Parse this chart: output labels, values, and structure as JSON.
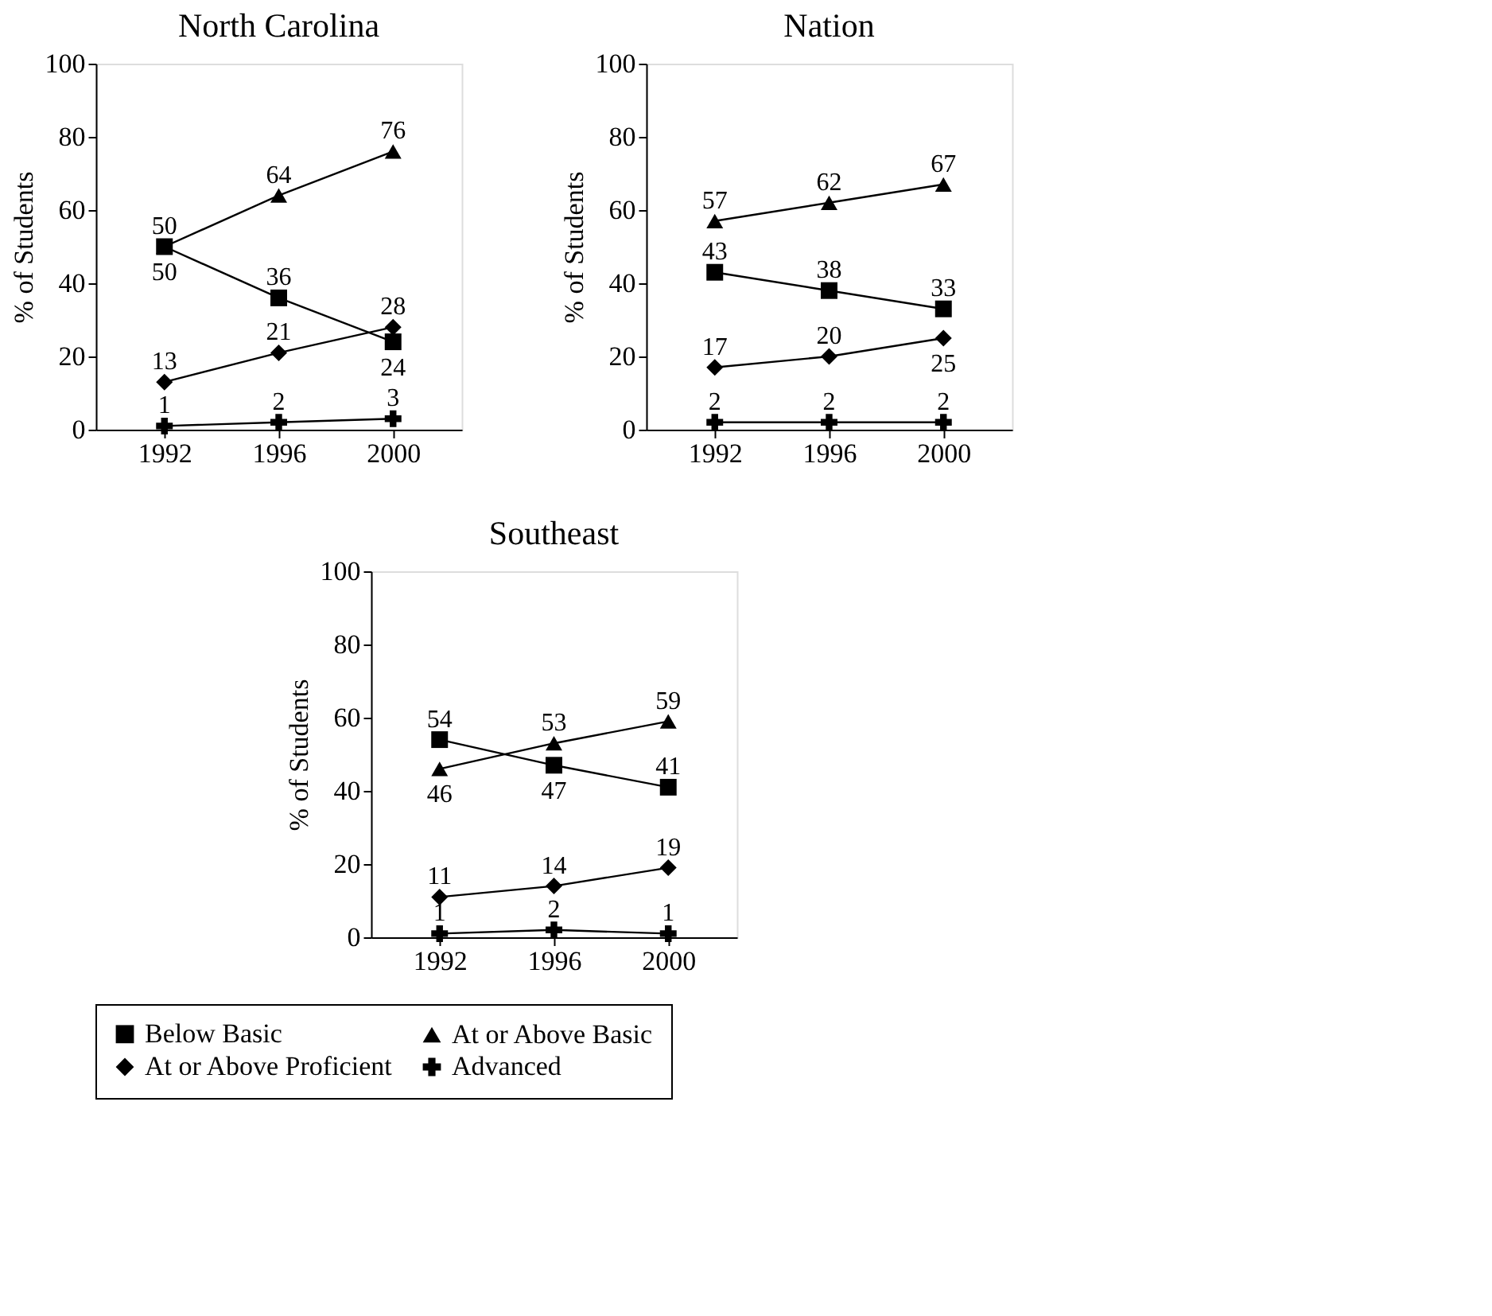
{
  "chart_data": [
    {
      "type": "line",
      "title": "North Carolina",
      "ylabel": "% of Students",
      "categories": [
        "1992",
        "1996",
        "2000"
      ],
      "ylim": [
        0,
        100
      ],
      "yticks": [
        0,
        20,
        40,
        60,
        80,
        100
      ],
      "grid": false,
      "legend": "bottom",
      "data_labels": true,
      "series": [
        {
          "name": "Below Basic",
          "color": "#000000",
          "marker": "square",
          "values": [
            50,
            36,
            24
          ]
        },
        {
          "name": "At or Above Basic",
          "color": "#000000",
          "marker": "triangle",
          "values": [
            50,
            64,
            76
          ]
        },
        {
          "name": "At or Above Proficient",
          "color": "#000000",
          "marker": "diamond",
          "values": [
            13,
            21,
            28
          ]
        },
        {
          "name": "Advanced",
          "color": "#000000",
          "marker": "cross",
          "values": [
            1,
            2,
            3
          ]
        }
      ]
    },
    {
      "type": "line",
      "title": "Nation",
      "ylabel": "% of Students",
      "categories": [
        "1992",
        "1996",
        "2000"
      ],
      "ylim": [
        0,
        100
      ],
      "yticks": [
        0,
        20,
        40,
        60,
        80,
        100
      ],
      "grid": false,
      "legend": "bottom",
      "data_labels": true,
      "series": [
        {
          "name": "Below Basic",
          "color": "#000000",
          "marker": "square",
          "values": [
            43,
            38,
            33
          ]
        },
        {
          "name": "At or Above Basic",
          "color": "#000000",
          "marker": "triangle",
          "values": [
            57,
            62,
            67
          ]
        },
        {
          "name": "At or Above Proficient",
          "color": "#000000",
          "marker": "diamond",
          "values": [
            17,
            20,
            25
          ]
        },
        {
          "name": "Advanced",
          "color": "#000000",
          "marker": "cross",
          "values": [
            2,
            2,
            2
          ]
        }
      ]
    },
    {
      "type": "line",
      "title": "Southeast",
      "ylabel": "% of Students",
      "categories": [
        "1992",
        "1996",
        "2000"
      ],
      "ylim": [
        0,
        100
      ],
      "yticks": [
        0,
        20,
        40,
        60,
        80,
        100
      ],
      "grid": false,
      "legend": "bottom",
      "data_labels": true,
      "series": [
        {
          "name": "Below Basic",
          "color": "#000000",
          "marker": "square",
          "values": [
            54,
            47,
            41
          ]
        },
        {
          "name": "At or Above Basic",
          "color": "#000000",
          "marker": "triangle",
          "values": [
            46,
            53,
            59
          ]
        },
        {
          "name": "At or Above Proficient",
          "color": "#000000",
          "marker": "diamond",
          "values": [
            11,
            14,
            19
          ]
        },
        {
          "name": "Advanced",
          "color": "#000000",
          "marker": "cross",
          "values": [
            1,
            2,
            1
          ]
        }
      ]
    }
  ]
}
